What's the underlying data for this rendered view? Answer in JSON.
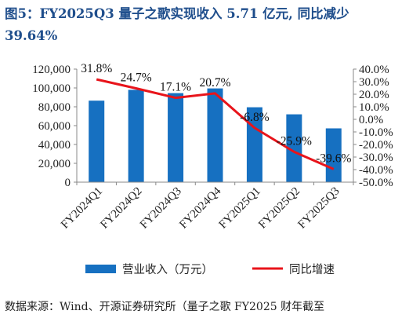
{
  "title": "图5：FY2025Q3 量子之歌实现收入 5.71 亿元, 同比减少 39.64%",
  "source": "数据来源：Wind、开源证券研究所（量子之歌 FY2025 财年截至",
  "chart_data": {
    "type": "bar",
    "categories": [
      "FY2024Q1",
      "FY2024Q2",
      "FY2024Q3",
      "FY2024Q4",
      "FY2025Q1",
      "FY2025Q2",
      "FY2025Q3"
    ],
    "series": [
      {
        "name": "营业收入（万元）",
        "type": "bar",
        "axis": "left",
        "color": "#1670c1",
        "values": [
          86500,
          98000,
          94500,
          99500,
          79500,
          72000,
          57100
        ]
      },
      {
        "name": "同比增速",
        "type": "line",
        "axis": "right",
        "color": "#e8141b",
        "values": [
          31.8,
          24.7,
          17.1,
          20.7,
          -6.8,
          -25.9,
          -39.6
        ],
        "labels": [
          "31.8%",
          "24.7%",
          "17.1%",
          "20.7%",
          "-6.8%",
          "-25.9%",
          "-39.6%"
        ]
      }
    ],
    "y_left": {
      "min": 0,
      "max": 120000,
      "step": 20000,
      "ticks": [
        "0",
        "20,000",
        "40,000",
        "60,000",
        "80,000",
        "100,000",
        "120,000"
      ]
    },
    "y_right": {
      "min": -50,
      "max": 40,
      "step": 10,
      "ticks": [
        "-50.0%",
        "-40.0%",
        "-30.0%",
        "-20.0%",
        "-10.0%",
        "0.0%",
        "10.0%",
        "20.0%",
        "30.0%",
        "40.0%"
      ]
    },
    "legend_position": "bottom",
    "grid": false
  }
}
